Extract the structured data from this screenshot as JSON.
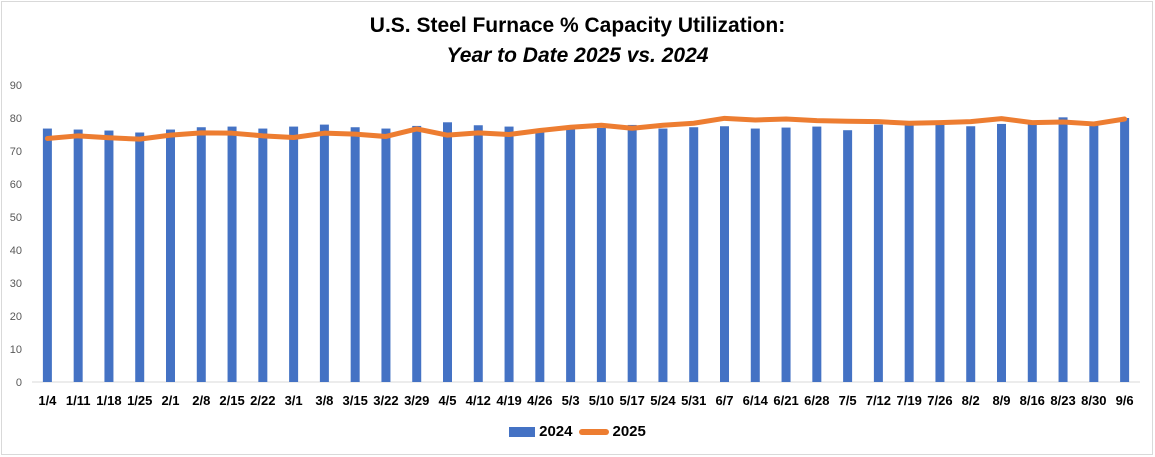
{
  "chart_data": {
    "type": "bar",
    "title": "U.S. Steel Furnace % Capacity Utilization:",
    "subtitle": "Year to Date 2025 vs. 2024",
    "categories": [
      "1/4",
      "1/11",
      "1/18",
      "1/25",
      "2/1",
      "2/8",
      "2/15",
      "2/22",
      "3/1",
      "3/8",
      "3/15",
      "3/22",
      "3/29",
      "4/5",
      "4/12",
      "4/19",
      "4/26",
      "5/3",
      "5/10",
      "5/17",
      "5/24",
      "5/31",
      "6/7",
      "6/14",
      "6/21",
      "6/28",
      "7/5",
      "7/12",
      "7/19",
      "7/26",
      "8/2",
      "8/9",
      "8/16",
      "8/23",
      "8/30",
      "9/6"
    ],
    "ylim": [
      0,
      90
    ],
    "yticks": [
      0,
      10,
      20,
      30,
      40,
      50,
      60,
      70,
      80,
      90
    ],
    "grid": false,
    "legend_position": "bottom",
    "series": [
      {
        "name": "2024",
        "type": "bar",
        "color": "#4472c4",
        "values": [
          76.8,
          76.5,
          76.2,
          75.6,
          76.5,
          77.2,
          77.4,
          76.8,
          77.4,
          78.0,
          77.2,
          76.8,
          77.6,
          78.7,
          77.8,
          77.4,
          75.8,
          76.6,
          77.0,
          77.9,
          76.8,
          77.2,
          77.5,
          76.8,
          77.1,
          77.4,
          76.3,
          78.0,
          78.3,
          78.1,
          77.5,
          78.2,
          78.9,
          80.2,
          78.5,
          80.0
        ]
      },
      {
        "name": "2025",
        "type": "line",
        "color": "#ed7d31",
        "values": [
          73.8,
          74.6,
          74.0,
          73.6,
          74.8,
          75.5,
          75.4,
          74.6,
          74.1,
          75.4,
          75.1,
          74.4,
          76.7,
          74.8,
          75.5,
          75.0,
          76.2,
          77.2,
          77.8,
          76.9,
          77.8,
          78.4,
          79.9,
          79.4,
          79.7,
          79.2,
          79.0,
          78.9,
          78.4,
          78.6,
          78.9,
          79.8,
          78.6,
          78.8,
          78.2,
          79.7
        ]
      }
    ]
  }
}
